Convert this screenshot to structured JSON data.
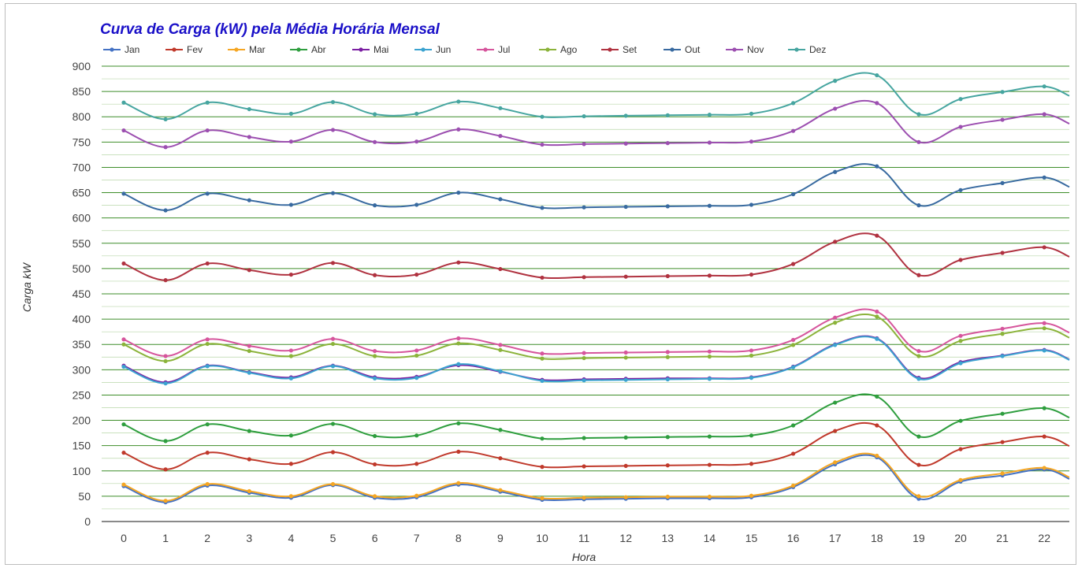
{
  "chart_data": {
    "type": "line",
    "title": "Curva de Carga (kW) pela Média Horária Mensal",
    "xlabel": "Hora",
    "ylabel": "Carga kW",
    "ylim": [
      0,
      900
    ],
    "ytick_step": 50,
    "minor_grid_step": 25,
    "grid": true,
    "legend_position": "top",
    "categories": [
      "0",
      "1",
      "2",
      "3",
      "4",
      "5",
      "6",
      "7",
      "8",
      "9",
      "10",
      "11",
      "12",
      "13",
      "14",
      "15",
      "16",
      "17",
      "18",
      "19",
      "20",
      "21",
      "22"
    ],
    "series": [
      {
        "name": "Jan",
        "color": "#4472c4",
        "values": [
          70,
          38,
          71,
          57,
          47,
          72,
          47,
          48,
          73,
          59,
          43,
          44,
          45,
          46,
          46,
          48,
          68,
          113,
          127,
          45,
          79,
          91,
          103
        ]
      },
      {
        "name": "Fev",
        "color": "#c0392b",
        "values": [
          136,
          103,
          136,
          123,
          114,
          137,
          113,
          114,
          138,
          125,
          108,
          109,
          110,
          111,
          112,
          114,
          134,
          179,
          190,
          112,
          143,
          157,
          168
        ]
      },
      {
        "name": "Mar",
        "color": "#f5a623",
        "values": [
          73,
          41,
          74,
          60,
          50,
          74,
          50,
          51,
          76,
          62,
          46,
          47,
          48,
          49,
          49,
          51,
          71,
          117,
          130,
          50,
          82,
          95,
          106
        ]
      },
      {
        "name": "Abr",
        "color": "#2e9e3e",
        "values": [
          192,
          159,
          192,
          179,
          170,
          193,
          169,
          170,
          194,
          181,
          164,
          165,
          166,
          167,
          168,
          170,
          190,
          235,
          247,
          168,
          199,
          213,
          224
        ]
      },
      {
        "name": "Mai",
        "color": "#7b1fa2",
        "values": [
          308,
          275,
          308,
          295,
          285,
          308,
          285,
          286,
          309,
          296,
          280,
          281,
          282,
          283,
          283,
          285,
          306,
          350,
          362,
          284,
          315,
          328,
          339
        ]
      },
      {
        "name": "Jun",
        "color": "#3ba3d0",
        "values": [
          306,
          273,
          307,
          294,
          283,
          307,
          283,
          284,
          311,
          297,
          278,
          279,
          280,
          281,
          282,
          284,
          305,
          349,
          361,
          282,
          313,
          327,
          338
        ]
      },
      {
        "name": "Jul",
        "color": "#d6559c",
        "values": [
          360,
          327,
          360,
          347,
          338,
          361,
          337,
          338,
          362,
          349,
          332,
          333,
          334,
          335,
          336,
          338,
          359,
          403,
          415,
          337,
          367,
          381,
          392
        ]
      },
      {
        "name": "Ago",
        "color": "#8bb33a",
        "values": [
          350,
          317,
          351,
          337,
          327,
          351,
          327,
          328,
          352,
          339,
          322,
          323,
          324,
          325,
          326,
          328,
          349,
          393,
          405,
          327,
          357,
          371,
          382
        ]
      },
      {
        "name": "Set",
        "color": "#b03240",
        "values": [
          510,
          477,
          510,
          497,
          488,
          511,
          487,
          488,
          512,
          499,
          482,
          483,
          484,
          485,
          486,
          488,
          509,
          553,
          565,
          487,
          517,
          531,
          542
        ]
      },
      {
        "name": "Out",
        "color": "#386aa0",
        "values": [
          648,
          615,
          648,
          635,
          626,
          649,
          625,
          626,
          650,
          637,
          620,
          621,
          622,
          623,
          624,
          626,
          647,
          691,
          702,
          625,
          655,
          669,
          680
        ]
      },
      {
        "name": "Nov",
        "color": "#9c4fb0",
        "values": [
          773,
          740,
          773,
          760,
          751,
          774,
          750,
          751,
          775,
          762,
          745,
          746,
          747,
          748,
          749,
          751,
          772,
          816,
          827,
          750,
          780,
          794,
          805
        ]
      },
      {
        "name": "Dez",
        "color": "#46a5a0",
        "values": [
          828,
          795,
          828,
          815,
          806,
          829,
          805,
          806,
          830,
          817,
          800,
          801,
          802,
          803,
          804,
          806,
          827,
          871,
          882,
          805,
          835,
          849,
          860
        ]
      }
    ]
  }
}
